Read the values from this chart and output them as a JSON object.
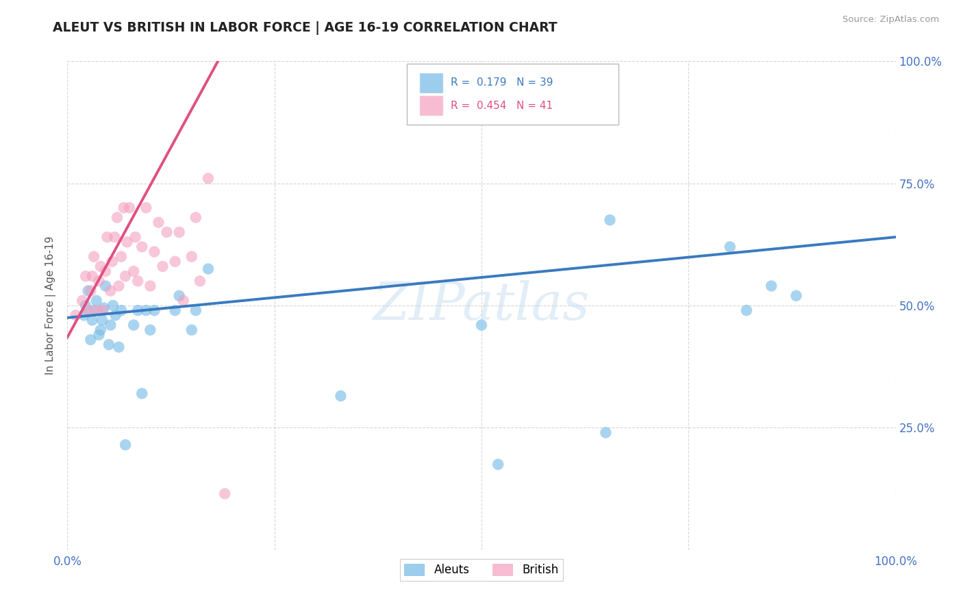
{
  "title": "ALEUT VS BRITISH IN LABOR FORCE | AGE 16-19 CORRELATION CHART",
  "source": "Source: ZipAtlas.com",
  "ylabel": "In Labor Force | Age 16-19",
  "xlim": [
    0,
    1.0
  ],
  "ylim": [
    0,
    1.0
  ],
  "xticklabels": [
    "0.0%",
    "",
    "",
    "",
    "100.0%"
  ],
  "yticklabels": [
    "",
    "25.0%",
    "50.0%",
    "75.0%",
    "100.0%"
  ],
  "watermark": "ZIPatlas",
  "aleuts_R": 0.179,
  "aleuts_N": 39,
  "british_R": 0.454,
  "british_N": 41,
  "aleuts_color": "#7bbde8",
  "british_color": "#f4a0c0",
  "aleuts_line_color": "#3a7abf",
  "british_line_color": "#e05080",
  "tick_color": "#4472c4",
  "background_color": "#ffffff",
  "grid_color": "#cccccc",
  "aleuts_x": [
    0.02,
    0.022,
    0.025,
    0.028,
    0.03,
    0.032,
    0.035,
    0.038,
    0.04,
    0.042,
    0.044,
    0.046,
    0.05,
    0.052,
    0.055,
    0.058,
    0.062,
    0.065,
    0.07,
    0.08,
    0.085,
    0.09,
    0.095,
    0.1,
    0.105,
    0.13,
    0.135,
    0.15,
    0.155,
    0.17,
    0.33,
    0.5,
    0.52,
    0.65,
    0.655,
    0.8,
    0.82,
    0.85,
    0.88
  ],
  "aleuts_y": [
    0.48,
    0.5,
    0.53,
    0.43,
    0.47,
    0.49,
    0.51,
    0.44,
    0.45,
    0.47,
    0.495,
    0.54,
    0.42,
    0.46,
    0.5,
    0.48,
    0.415,
    0.49,
    0.215,
    0.46,
    0.49,
    0.32,
    0.49,
    0.45,
    0.49,
    0.49,
    0.52,
    0.45,
    0.49,
    0.575,
    0.315,
    0.46,
    0.175,
    0.24,
    0.675,
    0.62,
    0.49,
    0.54,
    0.52
  ],
  "british_x": [
    0.01,
    0.018,
    0.022,
    0.025,
    0.028,
    0.03,
    0.032,
    0.035,
    0.038,
    0.04,
    0.043,
    0.046,
    0.048,
    0.052,
    0.054,
    0.057,
    0.06,
    0.062,
    0.065,
    0.068,
    0.07,
    0.072,
    0.075,
    0.08,
    0.082,
    0.085,
    0.09,
    0.095,
    0.1,
    0.105,
    0.11,
    0.115,
    0.12,
    0.13,
    0.135,
    0.14,
    0.15,
    0.155,
    0.16,
    0.17,
    0.19
  ],
  "british_y": [
    0.48,
    0.51,
    0.56,
    0.49,
    0.53,
    0.56,
    0.6,
    0.49,
    0.55,
    0.58,
    0.49,
    0.57,
    0.64,
    0.53,
    0.59,
    0.64,
    0.68,
    0.54,
    0.6,
    0.7,
    0.56,
    0.63,
    0.7,
    0.57,
    0.64,
    0.55,
    0.62,
    0.7,
    0.54,
    0.61,
    0.67,
    0.58,
    0.65,
    0.59,
    0.65,
    0.51,
    0.6,
    0.68,
    0.55,
    0.76,
    0.115
  ],
  "aleuts_line_x": [
    0.0,
    1.0
  ],
  "aleuts_line_y": [
    0.475,
    0.64
  ],
  "british_line_x": [
    0.0,
    0.185
  ],
  "british_line_y": [
    0.435,
    1.01
  ]
}
